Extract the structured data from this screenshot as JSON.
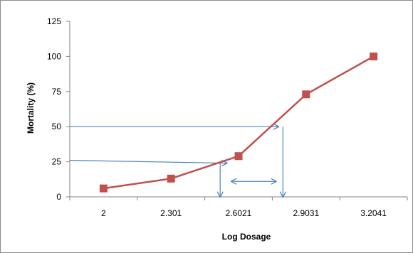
{
  "chart_data": {
    "type": "line",
    "title": "",
    "xlabel": "Log Dosage",
    "ylabel": "Mortality (%)",
    "categories": [
      "2",
      "2.301",
      "2.6021",
      "2.9031",
      "3.2041"
    ],
    "ylim": [
      0,
      125
    ],
    "yticks": [
      "0",
      "25",
      "50",
      "75",
      "100",
      "125"
    ],
    "grid": false,
    "legend": "none",
    "series": [
      {
        "x": [
          2,
          2.301,
          2.6021,
          2.9031,
          3.2041
        ],
        "values": [
          6,
          13,
          29,
          73,
          100
        ]
      }
    ],
    "annotation_arrows": [
      {
        "kind": "horizontal",
        "from_y": 26,
        "to": "curve",
        "to_x": 2.55,
        "to_y": 24
      },
      {
        "kind": "horizontal",
        "from_y": 50,
        "to": "curve",
        "to_x": 2.78,
        "to_y": 50
      },
      {
        "kind": "vertical-drop",
        "x": 2.52,
        "from_y": 24,
        "to_y": 0
      },
      {
        "kind": "vertical-drop",
        "x": 2.8,
        "from_y": 50,
        "to_y": 0
      },
      {
        "kind": "double",
        "from_x": 2.57,
        "to_x": 2.77,
        "y": 11
      }
    ],
    "colors": {
      "series": "#c0504d",
      "marker": "#c0504d",
      "arrows": "#4f81bd",
      "axis": "#868686"
    }
  }
}
